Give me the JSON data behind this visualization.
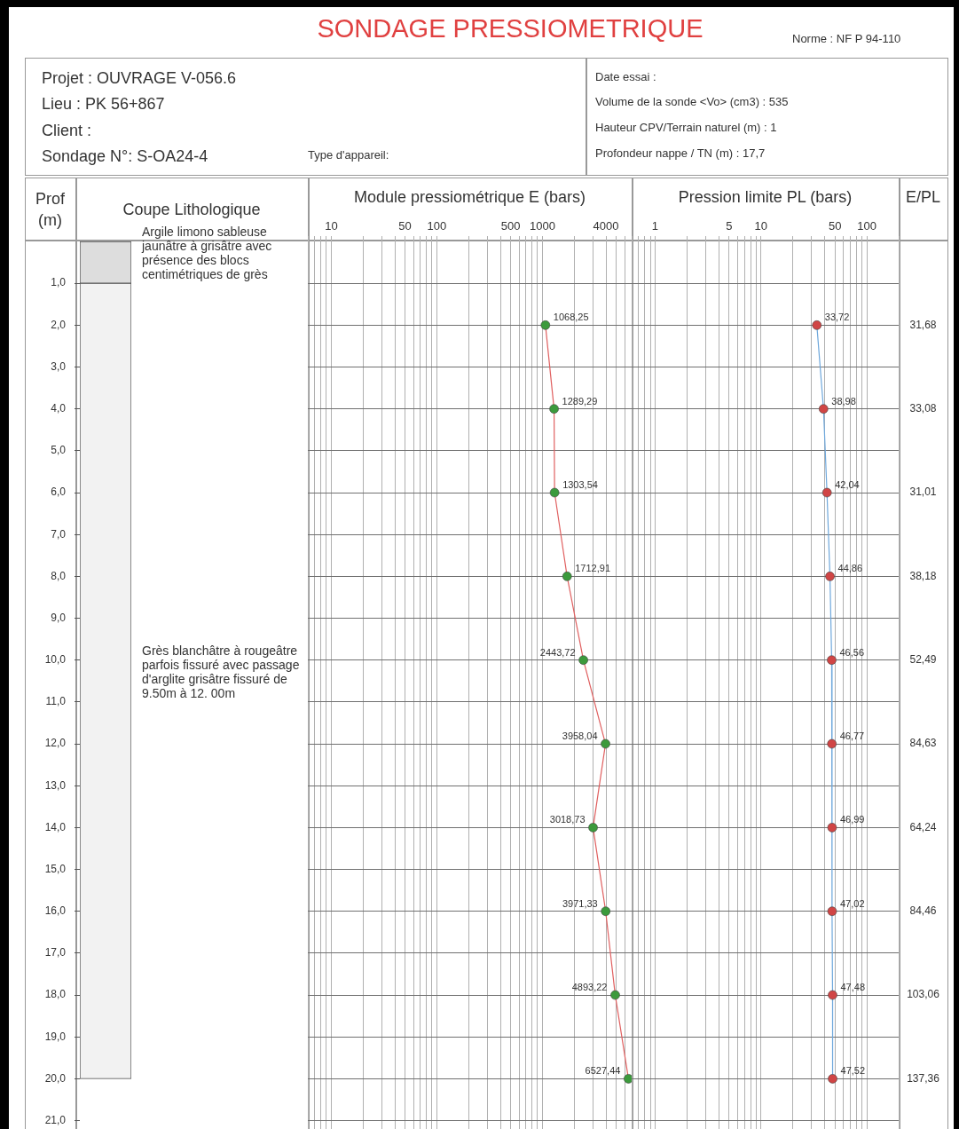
{
  "chart_data": [
    {
      "type": "other",
      "title": "SONDAGE PRESSIOMETRIQUE",
      "annotations": [
        "Norme : NF P 94-110",
        "Projet :  OUVRAGE V-056.6",
        "Lieu :  PK 56+867",
        "Client :",
        "Sondage N°:  S-OA24-4",
        "Type d'appareil:",
        "Date essai :",
        "Volume de la sonde <Vo> (cm3) :  535",
        "Hauteur CPV/Terrain naturel (m) :  1",
        "Profondeur nappe / TN  (m) :  17,7"
      ]
    },
    {
      "type": "bar",
      "stacked": true,
      "title": "Coupe Lithologique",
      "ylabel": "Prof (m)",
      "categories": [
        null
      ],
      "ylim": [
        21.2,
        0
      ],
      "yticks": [
        {
          "value": 1,
          "label": "1,0"
        },
        {
          "value": 2,
          "label": "2,0"
        },
        {
          "value": 3,
          "label": "3,0"
        },
        {
          "value": 4,
          "label": "4,0"
        },
        {
          "value": 5,
          "label": "5,0"
        },
        {
          "value": 6,
          "label": "6,0"
        },
        {
          "value": 7,
          "label": "7,0"
        },
        {
          "value": 8,
          "label": "8,0"
        },
        {
          "value": 9,
          "label": "9,0"
        },
        {
          "value": 10,
          "label": "10,0"
        },
        {
          "value": 11,
          "label": "11,0"
        },
        {
          "value": 12,
          "label": "12,0"
        },
        {
          "value": 13,
          "label": "13,0"
        },
        {
          "value": 14,
          "label": "14,0"
        },
        {
          "value": 15,
          "label": "15,0"
        },
        {
          "value": 16,
          "label": "16,0"
        },
        {
          "value": 17,
          "label": "17,0"
        },
        {
          "value": 18,
          "label": "18,0"
        },
        {
          "value": 19,
          "label": "19,0"
        },
        {
          "value": 20,
          "label": "20,0"
        },
        {
          "value": 21,
          "label": "21,0"
        }
      ],
      "series": [
        {
          "name": "Argile limono sableuse jaunâtre à grisâtre avec présence des blocs centimétriques de grès",
          "color": "#dddddd",
          "values": [
            1
          ]
        },
        {
          "name": "Grès blanchâtre à rougeâtre parfois fissuré avec passage d'arglite grisâtre fissuré de 9.50m à 12. 00m",
          "color": "#f2f2f2",
          "values": [
            19
          ]
        }
      ]
    },
    {
      "type": "line",
      "orientation": "horizontal",
      "title": "Module pressiométrique  E (bars)",
      "log": "x",
      "xlim": [
        6,
        7000
      ],
      "xticks": [
        {
          "value": 6,
          "label": null
        },
        {
          "value": 7,
          "label": null
        },
        {
          "value": 8,
          "label": null
        },
        {
          "value": 9,
          "label": null
        },
        10,
        {
          "value": 20,
          "label": null
        },
        {
          "value": 30,
          "label": null
        },
        {
          "value": 40,
          "label": null
        },
        50,
        {
          "value": 60,
          "label": null
        },
        {
          "value": 70,
          "label": null
        },
        {
          "value": 80,
          "label": null
        },
        {
          "value": 90,
          "label": null
        },
        100,
        {
          "value": 200,
          "label": null
        },
        {
          "value": 300,
          "label": null
        },
        {
          "value": 400,
          "label": null
        },
        500,
        {
          "value": 600,
          "label": null
        },
        {
          "value": 700,
          "label": null
        },
        {
          "value": 800,
          "label": null
        },
        {
          "value": 900,
          "label": null
        },
        1000,
        {
          "value": 2000,
          "label": null
        },
        {
          "value": 3000,
          "label": null
        },
        4000,
        {
          "value": 5000,
          "label": null
        },
        {
          "value": 6000,
          "label": null
        }
      ],
      "ylim": [
        21.2,
        0
      ],
      "yticks": [
        1,
        2,
        3,
        4,
        5,
        6,
        7,
        8,
        9,
        10,
        11,
        12,
        13,
        14,
        15,
        16,
        17,
        18,
        19,
        20,
        21
      ],
      "tick_labels": "x",
      "grid": true,
      "marker": "circle",
      "line_style": "solid",
      "series": [
        {
          "color": "#e06060",
          "colors": [
            "#3c9a3c",
            "#3c9a3c",
            "#3c9a3c",
            "#3c9a3c",
            "#3c9a3c",
            "#3c9a3c",
            "#3c9a3c",
            "#3c9a3c",
            "#3c9a3c",
            "#3c9a3c"
          ],
          "x": [
            2,
            4,
            6,
            8,
            10,
            12,
            14,
            16,
            18,
            20
          ],
          "values": [
            1068.25,
            1289.29,
            1303.54,
            1712.91,
            2443.72,
            3958.04,
            3018.73,
            3971.33,
            4893.22,
            6527.44
          ],
          "value_labels": [
            "1068,25",
            "1289,29",
            "1303,54",
            "1712,91",
            "2443,72",
            "3958,04",
            "3018,73",
            "3971,33",
            "4893,22",
            "6527,44"
          ]
        }
      ]
    },
    {
      "type": "line",
      "orientation": "horizontal",
      "title": "Pression limite  PL (bars)",
      "log": "x",
      "xlim": [
        0.6,
        200
      ],
      "xticks": [
        {
          "value": 0.6,
          "label": null
        },
        {
          "value": 0.7,
          "label": null
        },
        {
          "value": 0.8,
          "label": null
        },
        {
          "value": 0.9,
          "label": null
        },
        1,
        {
          "value": 2,
          "label": null
        },
        {
          "value": 3,
          "label": null
        },
        {
          "value": 4,
          "label": null
        },
        5,
        {
          "value": 6,
          "label": null
        },
        {
          "value": 7,
          "label": null
        },
        {
          "value": 8,
          "label": null
        },
        {
          "value": 9,
          "label": null
        },
        10,
        {
          "value": 20,
          "label": null
        },
        {
          "value": 30,
          "label": null
        },
        {
          "value": 40,
          "label": null
        },
        50,
        {
          "value": 60,
          "label": null
        },
        {
          "value": 70,
          "label": null
        },
        {
          "value": 80,
          "label": null
        },
        {
          "value": 90,
          "label": null
        },
        100,
        {
          "value": 200,
          "label": null
        }
      ],
      "ylim": [
        21.2,
        0
      ],
      "yticks": [
        1,
        2,
        3,
        4,
        5,
        6,
        7,
        8,
        9,
        10,
        11,
        12,
        13,
        14,
        15,
        16,
        17,
        18,
        19,
        20,
        21
      ],
      "tick_labels": "x",
      "grid": true,
      "marker": "circle",
      "line_style": "solid",
      "annotations": [
        "E/PL",
        "31,68",
        "33,08",
        "31,01",
        "38,18",
        "52,49",
        "84,63",
        "64,24",
        "84,46",
        "103,06",
        "137,36"
      ],
      "series": [
        {
          "color": "#6fa8dc",
          "colors": [
            "#d04545",
            "#d04545",
            "#d04545",
            "#d04545",
            "#d04545",
            "#d04545",
            "#d04545",
            "#d04545",
            "#d04545",
            "#d04545"
          ],
          "x": [
            2,
            4,
            6,
            8,
            10,
            12,
            14,
            16,
            18,
            20
          ],
          "values": [
            33.72,
            38.98,
            42.04,
            44.86,
            46.56,
            46.77,
            46.99,
            47.02,
            47.48,
            47.52
          ],
          "value_labels": [
            "33,72",
            "38,98",
            "42,04",
            "44,86",
            "46,56",
            "46,77",
            "46,99",
            "47,02",
            "47,48",
            "47,52"
          ]
        }
      ]
    }
  ]
}
